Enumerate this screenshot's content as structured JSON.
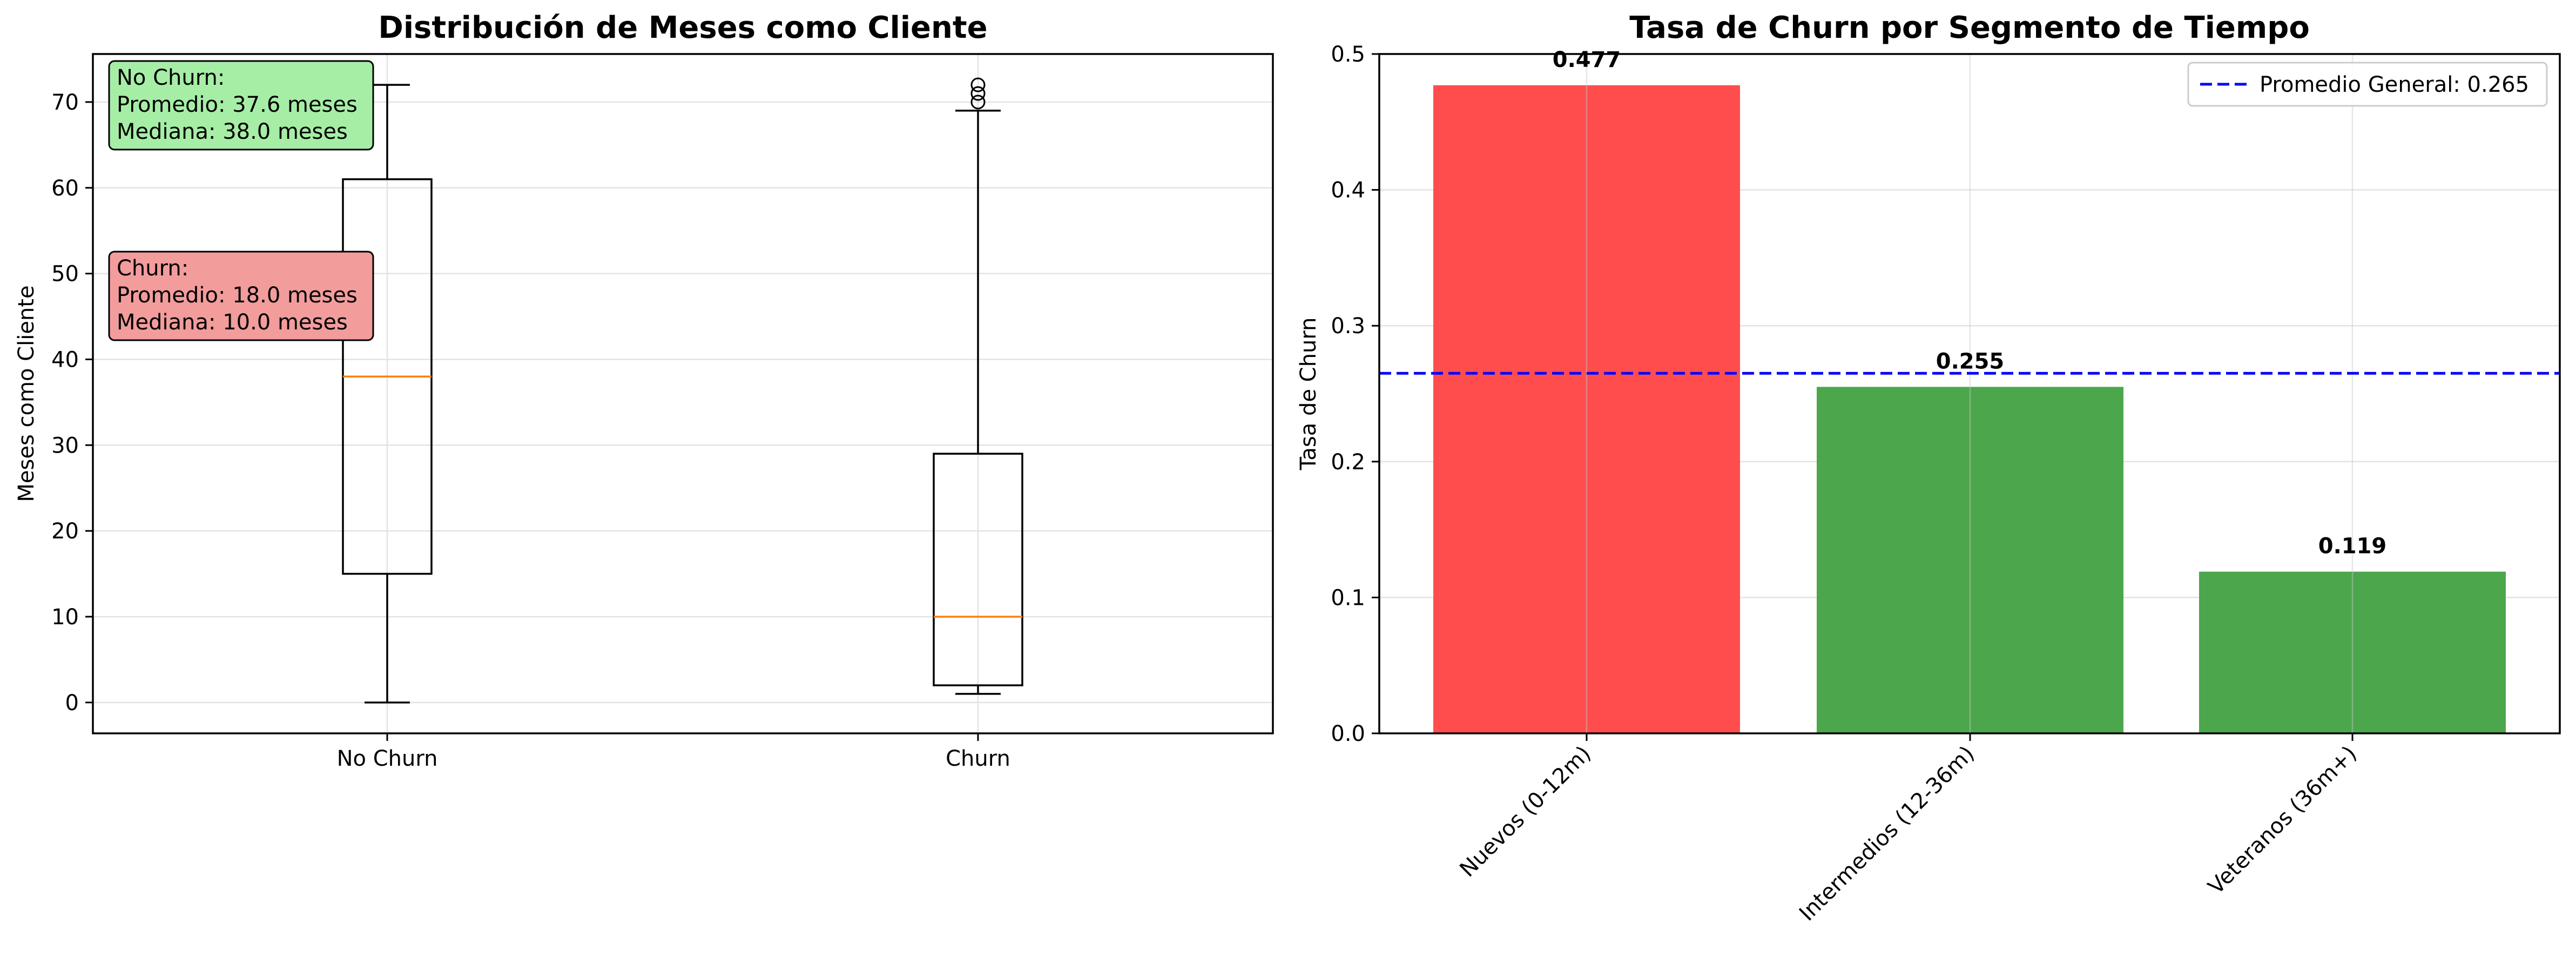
{
  "chart_data": [
    {
      "type": "boxplot",
      "title": "Distribución de Meses como Cliente",
      "xlabel": "",
      "ylabel": "Meses como Cliente",
      "ylim": [
        -3.6,
        75.6
      ],
      "yticks": [
        0,
        10,
        20,
        30,
        40,
        50,
        60,
        70
      ],
      "categories": [
        "No Churn",
        "Churn"
      ],
      "grid": true,
      "boxes": [
        {
          "category": "No Churn",
          "whisker_low": 0,
          "q1": 15,
          "median": 38,
          "q3": 61,
          "whisker_high": 72,
          "outliers": []
        },
        {
          "category": "Churn",
          "whisker_low": 1,
          "q1": 2,
          "median": 10,
          "q3": 29,
          "whisker_high": 69,
          "outliers": [
            70,
            71,
            72
          ]
        }
      ],
      "annotations": [
        {
          "lines": [
            "No Churn:",
            "Promedio: 37.6 meses",
            "Mediana: 38.0 meses"
          ],
          "color": "#a6eea6"
        },
        {
          "lines": [
            "Churn:",
            "Promedio: 18.0 meses",
            "Mediana: 10.0 meses"
          ],
          "color": "#f29c9c"
        }
      ],
      "colors": {
        "median": "#ff7f0e",
        "box": "#000000"
      }
    },
    {
      "type": "bar",
      "title": "Tasa de Churn por Segmento de Tiempo",
      "xlabel": "",
      "ylabel": "Tasa de Churn",
      "ylim": [
        0,
        0.5
      ],
      "yticks": [
        0.0,
        0.1,
        0.2,
        0.3,
        0.4,
        0.5
      ],
      "ytick_labels": [
        "0.0",
        "0.1",
        "0.2",
        "0.3",
        "0.4",
        "0.5"
      ],
      "categories": [
        "Nuevos (0-12m)",
        "Intermedios (12-36m)",
        "Veteranos (36m+)"
      ],
      "values": [
        0.477,
        0.255,
        0.119
      ],
      "value_labels": [
        "0.477",
        "0.255",
        "0.119"
      ],
      "bar_colors": [
        "#ff4d4d",
        "#4ca64c",
        "#4ca64c"
      ],
      "reference_line": {
        "value": 0.265,
        "label": "Promedio General: 0.265",
        "color": "#0000ff",
        "style": "dashed"
      },
      "legend": "top-right",
      "grid": true
    }
  ]
}
